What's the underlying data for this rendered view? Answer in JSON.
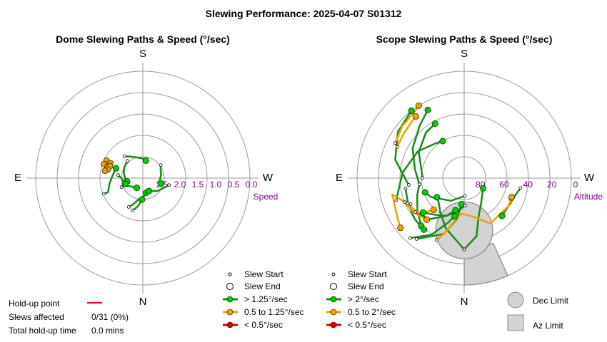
{
  "title": "Slewing Performance: 2025-04-07 S01312",
  "colors": {
    "fast": "#00cc00",
    "fast_line": "#1a8a1a",
    "medium": "#f0a000",
    "slow": "#dd0000",
    "limit": "#d3d3d3",
    "tick": "#800080"
  },
  "chart_data": [
    {
      "type": "polar",
      "title": "Dome Slewing Paths & Speed (°/sec)",
      "directions": {
        "top": "S",
        "bottom": "N",
        "left": "E",
        "right": "W"
      },
      "radial_label": "Speed",
      "radial_ticks": [
        "2.5",
        "2.0",
        "1.5",
        "1.0",
        "0.5",
        "0.0"
      ],
      "radial_range": [
        0.0,
        3.0
      ],
      "radial_direction": "decreasing outward",
      "legend": [
        "Slew Start",
        "Slew End",
        "> 1.25°/sec",
        "0.5 to 1.25°/sec",
        "< 0.5°/sec"
      ],
      "medium_points": [
        [
          296,
          1.87
        ],
        [
          290,
          1.84
        ],
        [
          292,
          1.96
        ],
        [
          295,
          2.0
        ],
        [
          287,
          1.96
        ],
        [
          290,
          2.02
        ],
        [
          284,
          1.99
        ],
        [
          281,
          1.92
        ]
      ],
      "paths": [
        {
          "speed": "fast",
          "points": [
            [
              247,
              2.35
            ],
            [
              247,
              2.45
            ],
            [
              235,
              2.6
            ],
            [
              220,
              2.65
            ],
            [
              212,
              2.68
            ]
          ]
        },
        {
          "speed": "fast",
          "points": [
            [
              318,
              2.35
            ],
            [
              300,
              2.4
            ],
            [
              285,
              2.45
            ],
            [
              270,
              2.5
            ],
            [
              258,
              2.55
            ]
          ]
        },
        {
          "speed": "fast",
          "points": [
            [
              54,
              2.38
            ],
            [
              65,
              2.45
            ],
            [
              80,
              2.48
            ],
            [
              95,
              2.52
            ],
            [
              106,
              2.48
            ]
          ]
        },
        {
          "speed": "fast",
          "points": [
            [
              206,
              2.1
            ],
            [
              201,
              2.2
            ],
            [
              190,
              2.4
            ],
            [
              176,
              2.5
            ],
            [
              167,
              2.58
            ]
          ]
        },
        {
          "speed": "fast",
          "points": [
            [
              198,
              2.05
            ],
            [
              195,
              2.1
            ],
            [
              190,
              2.2
            ],
            [
              186,
              2.3
            ],
            [
              182,
              2.4
            ]
          ]
        },
        {
          "speed": "fast",
          "points": [
            [
              320,
              2.2
            ],
            [
              330,
              2.3
            ],
            [
              345,
              2.4
            ],
            [
              0,
              2.45
            ],
            [
              10,
              2.5
            ]
          ]
        },
        {
          "speed": "fast",
          "points": [
            [
              105,
              2.24
            ],
            [
              115,
              2.35
            ],
            [
              130,
              2.45
            ],
            [
              145,
              2.55
            ],
            [
              155,
              2.6
            ]
          ]
        },
        {
          "speed": "fast",
          "points": [
            [
              248,
              1.82
            ],
            [
              248,
              1.95
            ],
            [
              260,
              2.05
            ],
            [
              275,
              2.15
            ],
            [
              290,
              2.2
            ]
          ]
        },
        {
          "speed": "fast",
          "points": [
            [
              277,
              2.3
            ],
            [
              270,
              2.4
            ],
            [
              260,
              2.45
            ],
            [
              252,
              2.48
            ]
          ]
        }
      ]
    },
    {
      "type": "polar",
      "title": "Scope Slewing Paths & Speed (°/sec)",
      "directions": {
        "top": "S",
        "bottom": "N",
        "left": "E",
        "right": "W"
      },
      "radial_label": "Altitude",
      "radial_ticks": [
        "80",
        "60",
        "40",
        "20",
        "0"
      ],
      "radial_range": [
        90,
        0
      ],
      "legend": [
        "Slew Start",
        "Slew End",
        "> 2°/sec",
        "0.5 to 2°/sec",
        "< 0.5°/sec",
        "Dec Limit",
        "Az Limit"
      ],
      "paths": [
        {
          "speed": "fast",
          "points": [
            [
              180,
              30
            ],
            [
              168,
              40
            ],
            [
              160,
              55
            ],
            [
              145,
              65
            ],
            [
              130,
              70
            ],
            [
              118,
              72
            ]
          ]
        },
        {
          "speed": "fast",
          "points": [
            [
              180,
              30
            ],
            [
              200,
              45
            ],
            [
              215,
              55
            ],
            [
              225,
              60
            ],
            [
              235,
              62
            ]
          ]
        },
        {
          "speed": "fast",
          "points": [
            [
              218,
              25
            ],
            [
              200,
              40
            ],
            [
              190,
              55
            ],
            [
              186,
              68
            ]
          ]
        },
        {
          "speed": "fast",
          "points": [
            [
              235,
              40
            ],
            [
              220,
              45
            ],
            [
              205,
              55
            ],
            [
              195,
              62
            ]
          ]
        },
        {
          "speed": "fast",
          "points": [
            [
              262,
              52
            ],
            [
              250,
              48
            ],
            [
              235,
              42
            ],
            [
              222,
              36
            ]
          ]
        },
        {
          "speed": "fast",
          "points": [
            [
              260,
              40
            ],
            [
              245,
              38
            ],
            [
              230,
              36
            ],
            [
              218,
              35
            ]
          ]
        },
        {
          "speed": "fast",
          "points": [
            [
              252,
              30
            ],
            [
              275,
              38
            ],
            [
              300,
              45
            ],
            [
              320,
              52
            ],
            [
              330,
              54
            ]
          ]
        },
        {
          "speed": "fast",
          "points": [
            [
              262,
              52
            ],
            [
              280,
              48
            ],
            [
              300,
              40
            ],
            [
              320,
              32
            ],
            [
              332,
              25
            ]
          ]
        },
        {
          "speed": "fast",
          "points": [
            [
              270,
              55
            ],
            [
              300,
              46
            ],
            [
              320,
              40
            ],
            [
              332,
              38
            ]
          ]
        },
        {
          "speed": "fast",
          "points": [
            [
              263,
              43
            ],
            [
              285,
              30
            ],
            [
              305,
              22
            ],
            [
              322,
              18
            ]
          ]
        },
        {
          "speed": "fast",
          "points": [
            [
              222,
              22
            ],
            [
              210,
              35
            ],
            [
              200,
              50
            ],
            [
              194,
              57
            ]
          ]
        },
        {
          "speed": "fast",
          "points": [
            [
              178,
              67
            ],
            [
              190,
              62
            ],
            [
              205,
              55
            ],
            [
              220,
              50
            ],
            [
              230,
              45
            ]
          ]
        },
        {
          "speed": "fast",
          "points": [
            [
              100,
              42
            ],
            [
              110,
              45
            ],
            [
              125,
              46
            ],
            [
              135,
              45
            ]
          ]
        },
        {
          "speed": "fast",
          "points": [
            [
              178,
              75
            ],
            [
              210,
              68
            ],
            [
              240,
              58
            ],
            [
              250,
              55
            ]
          ]
        }
      ],
      "medium_paths": [
        {
          "points": [
            [
              204,
              33
            ],
            [
              200,
              40
            ],
            [
              196,
              48
            ],
            [
              192,
              54
            ],
            [
              184,
              60
            ],
            [
              168,
              57
            ],
            [
              150,
              46
            ],
            [
              118,
              45
            ],
            [
              115,
              48
            ],
            [
              112,
              47
            ]
          ]
        },
        {
          "points": [
            [
              246,
              38
            ],
            [
              238,
              40
            ],
            [
              233,
              42
            ],
            [
              228,
              48
            ],
            [
              224,
              53
            ]
          ]
        },
        {
          "points": [
            [
              248,
              36
            ],
            [
              240,
              38
            ],
            [
              232,
              40
            ],
            [
              222,
              43
            ]
          ]
        },
        {
          "points": [
            [
              244,
              40
            ],
            [
              250,
              35
            ],
            [
              257,
              28
            ],
            [
              240,
              25
            ],
            [
              232,
              22
            ]
          ]
        },
        {
          "points": [
            [
              295,
              28
            ],
            [
              305,
              27
            ],
            [
              318,
              25
            ],
            [
              322,
              24
            ]
          ]
        },
        {
          "points": [
            [
              297,
              25
            ],
            [
              310,
              22
            ],
            [
              324,
              20
            ],
            [
              328,
              18
            ]
          ]
        }
      ],
      "dec_limit": {
        "center_az": 0,
        "center_alt": 46,
        "radius_deg": 24
      },
      "az_limit": {
        "az_range": [
          0,
          24
        ],
        "alt_range": [
          0,
          30
        ]
      }
    }
  ],
  "holdup": {
    "point_label": "Hold-up point",
    "slews_label": "Slews affected",
    "slews_value": "0/31 (0%)",
    "total_label": "Total hold-up time",
    "total_value": "0.0 mins"
  }
}
